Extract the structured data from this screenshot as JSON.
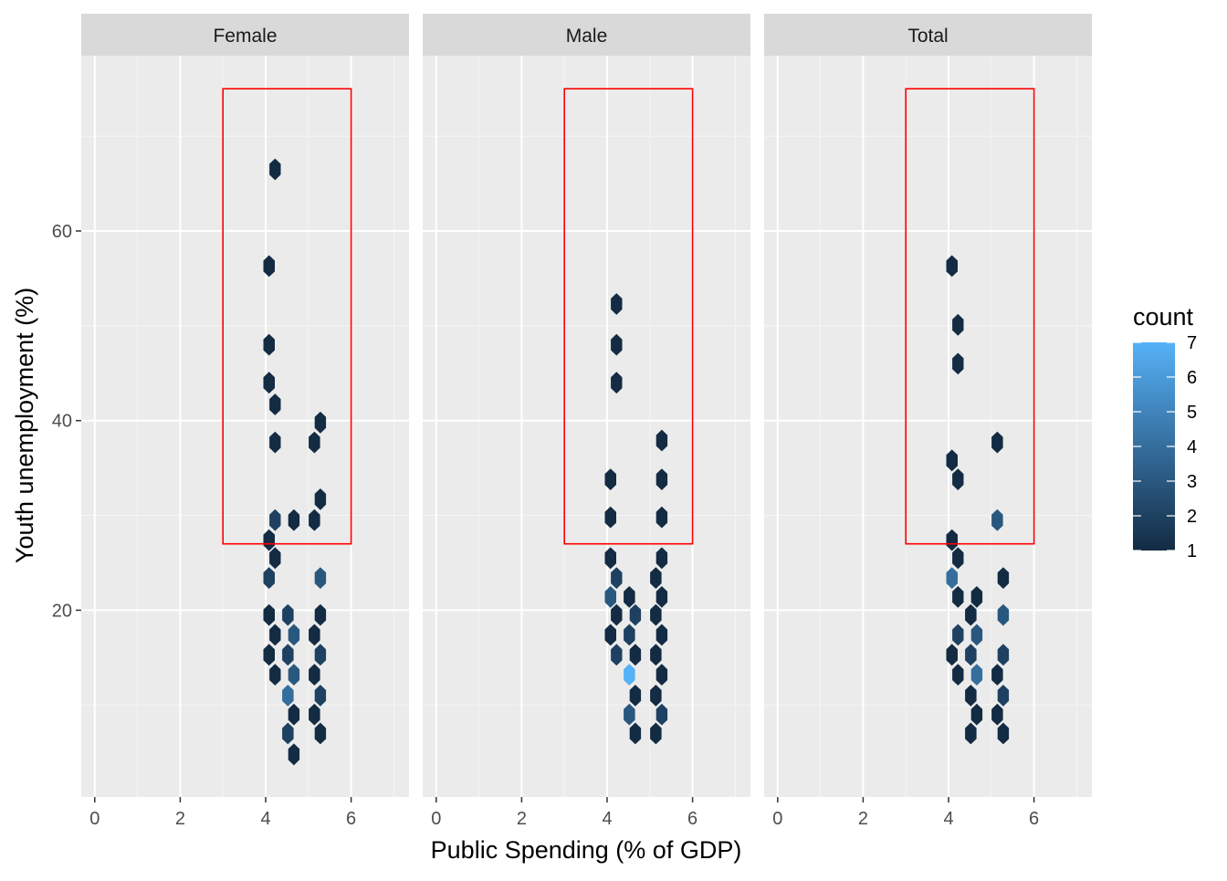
{
  "chart_data": {
    "type": "hexbin",
    "facet_by": "sex",
    "panels": [
      {
        "label": "Female",
        "bins": [
          {
            "x": 4.22,
            "y": 66.5,
            "count": 1
          },
          {
            "x": 4.08,
            "y": 56.3,
            "count": 1
          },
          {
            "x": 4.08,
            "y": 48.0,
            "count": 1
          },
          {
            "x": 4.08,
            "y": 44.0,
            "count": 1
          },
          {
            "x": 4.22,
            "y": 41.7,
            "count": 1
          },
          {
            "x": 4.22,
            "y": 37.7,
            "count": 1
          },
          {
            "x": 5.28,
            "y": 39.8,
            "count": 1
          },
          {
            "x": 5.14,
            "y": 37.7,
            "count": 1
          },
          {
            "x": 5.28,
            "y": 31.7,
            "count": 1
          },
          {
            "x": 5.14,
            "y": 29.5,
            "count": 1
          },
          {
            "x": 4.22,
            "y": 29.5,
            "count": 2
          },
          {
            "x": 4.66,
            "y": 29.5,
            "count": 1
          },
          {
            "x": 4.08,
            "y": 27.4,
            "count": 1
          },
          {
            "x": 4.08,
            "y": 23.4,
            "count": 2
          },
          {
            "x": 4.22,
            "y": 25.5,
            "count": 1
          },
          {
            "x": 5.28,
            "y": 23.4,
            "count": 3
          },
          {
            "x": 4.08,
            "y": 19.5,
            "count": 1
          },
          {
            "x": 4.22,
            "y": 17.4,
            "count": 1
          },
          {
            "x": 4.08,
            "y": 15.3,
            "count": 1
          },
          {
            "x": 4.22,
            "y": 13.2,
            "count": 1
          },
          {
            "x": 4.52,
            "y": 19.5,
            "count": 2
          },
          {
            "x": 4.66,
            "y": 17.4,
            "count": 3
          },
          {
            "x": 4.52,
            "y": 15.3,
            "count": 2
          },
          {
            "x": 4.66,
            "y": 13.2,
            "count": 3
          },
          {
            "x": 4.52,
            "y": 11.0,
            "count": 4
          },
          {
            "x": 4.66,
            "y": 9.0,
            "count": 1
          },
          {
            "x": 4.52,
            "y": 7.0,
            "count": 2
          },
          {
            "x": 4.66,
            "y": 4.8,
            "count": 1
          },
          {
            "x": 5.28,
            "y": 19.5,
            "count": 1
          },
          {
            "x": 5.14,
            "y": 17.4,
            "count": 1
          },
          {
            "x": 5.28,
            "y": 15.3,
            "count": 2
          },
          {
            "x": 5.14,
            "y": 13.2,
            "count": 1
          },
          {
            "x": 5.28,
            "y": 11.0,
            "count": 2
          },
          {
            "x": 5.14,
            "y": 9.0,
            "count": 1
          },
          {
            "x": 5.28,
            "y": 7.0,
            "count": 1
          }
        ]
      },
      {
        "label": "Male",
        "bins": [
          {
            "x": 4.22,
            "y": 52.3,
            "count": 1
          },
          {
            "x": 4.22,
            "y": 48.0,
            "count": 1
          },
          {
            "x": 4.22,
            "y": 44.0,
            "count": 1
          },
          {
            "x": 4.08,
            "y": 33.8,
            "count": 1
          },
          {
            "x": 4.08,
            "y": 29.8,
            "count": 1
          },
          {
            "x": 5.28,
            "y": 37.9,
            "count": 1
          },
          {
            "x": 5.28,
            "y": 33.8,
            "count": 1
          },
          {
            "x": 5.28,
            "y": 29.8,
            "count": 1
          },
          {
            "x": 4.08,
            "y": 25.5,
            "count": 1
          },
          {
            "x": 4.22,
            "y": 23.4,
            "count": 2
          },
          {
            "x": 4.08,
            "y": 21.4,
            "count": 3
          },
          {
            "x": 4.22,
            "y": 19.5,
            "count": 1
          },
          {
            "x": 4.08,
            "y": 17.4,
            "count": 1
          },
          {
            "x": 4.22,
            "y": 15.3,
            "count": 2
          },
          {
            "x": 4.52,
            "y": 21.4,
            "count": 1
          },
          {
            "x": 4.66,
            "y": 19.5,
            "count": 2
          },
          {
            "x": 4.52,
            "y": 17.4,
            "count": 2
          },
          {
            "x": 4.66,
            "y": 15.3,
            "count": 1
          },
          {
            "x": 4.52,
            "y": 13.2,
            "count": 7
          },
          {
            "x": 4.66,
            "y": 11.0,
            "count": 1
          },
          {
            "x": 4.52,
            "y": 9.0,
            "count": 3
          },
          {
            "x": 4.66,
            "y": 7.0,
            "count": 1
          },
          {
            "x": 5.28,
            "y": 25.5,
            "count": 1
          },
          {
            "x": 5.14,
            "y": 23.4,
            "count": 1
          },
          {
            "x": 5.28,
            "y": 21.4,
            "count": 1
          },
          {
            "x": 5.14,
            "y": 19.5,
            "count": 1
          },
          {
            "x": 5.28,
            "y": 17.4,
            "count": 1
          },
          {
            "x": 5.14,
            "y": 15.3,
            "count": 1
          },
          {
            "x": 5.28,
            "y": 13.2,
            "count": 1
          },
          {
            "x": 5.14,
            "y": 11.0,
            "count": 1
          },
          {
            "x": 5.28,
            "y": 9.0,
            "count": 2
          },
          {
            "x": 5.14,
            "y": 7.0,
            "count": 1
          }
        ]
      },
      {
        "label": "Total",
        "bins": [
          {
            "x": 4.08,
            "y": 56.3,
            "count": 1
          },
          {
            "x": 4.22,
            "y": 50.1,
            "count": 1
          },
          {
            "x": 4.22,
            "y": 46.0,
            "count": 1
          },
          {
            "x": 4.08,
            "y": 35.8,
            "count": 1
          },
          {
            "x": 4.22,
            "y": 33.8,
            "count": 1
          },
          {
            "x": 5.14,
            "y": 37.7,
            "count": 1
          },
          {
            "x": 5.14,
            "y": 29.5,
            "count": 3
          },
          {
            "x": 4.08,
            "y": 27.4,
            "count": 1
          },
          {
            "x": 4.22,
            "y": 25.5,
            "count": 1
          },
          {
            "x": 4.08,
            "y": 23.4,
            "count": 4
          },
          {
            "x": 4.22,
            "y": 21.4,
            "count": 1
          },
          {
            "x": 4.22,
            "y": 17.4,
            "count": 2
          },
          {
            "x": 4.08,
            "y": 15.3,
            "count": 1
          },
          {
            "x": 4.22,
            "y": 13.2,
            "count": 1
          },
          {
            "x": 4.66,
            "y": 21.4,
            "count": 1
          },
          {
            "x": 4.52,
            "y": 19.5,
            "count": 1
          },
          {
            "x": 4.66,
            "y": 17.4,
            "count": 3
          },
          {
            "x": 4.52,
            "y": 15.3,
            "count": 2
          },
          {
            "x": 4.66,
            "y": 13.2,
            "count": 4
          },
          {
            "x": 4.52,
            "y": 11.0,
            "count": 1
          },
          {
            "x": 4.66,
            "y": 9.0,
            "count": 1
          },
          {
            "x": 4.52,
            "y": 7.0,
            "count": 1
          },
          {
            "x": 5.28,
            "y": 23.4,
            "count": 1
          },
          {
            "x": 5.28,
            "y": 19.5,
            "count": 3
          },
          {
            "x": 5.28,
            "y": 15.3,
            "count": 2
          },
          {
            "x": 5.14,
            "y": 13.2,
            "count": 1
          },
          {
            "x": 5.28,
            "y": 11.0,
            "count": 2
          },
          {
            "x": 5.14,
            "y": 9.0,
            "count": 1
          },
          {
            "x": 5.28,
            "y": 7.0,
            "count": 1
          }
        ]
      }
    ],
    "highlight_rect": {
      "xmin": 3,
      "xmax": 6,
      "ymin": 27,
      "ymax": 75,
      "color": "#ff0000"
    },
    "xlabel": "Public Spending (% of GDP)",
    "ylabel": "Youth unemployment (%)",
    "x_ticks": [
      0,
      2,
      4,
      6
    ],
    "y_ticks": [
      20,
      40,
      60
    ],
    "xlim": [
      -0.3,
      7.2
    ],
    "ylim": [
      2,
      80
    ],
    "grid": true,
    "panel_background": "#ebebeb",
    "strip_background": "#d9d9d9",
    "legend": {
      "title": "count",
      "position": "right",
      "ticks": [
        1,
        2,
        3,
        4,
        5,
        6,
        7
      ],
      "low_color": "#132b43",
      "high_color": "#56b1f7"
    }
  }
}
